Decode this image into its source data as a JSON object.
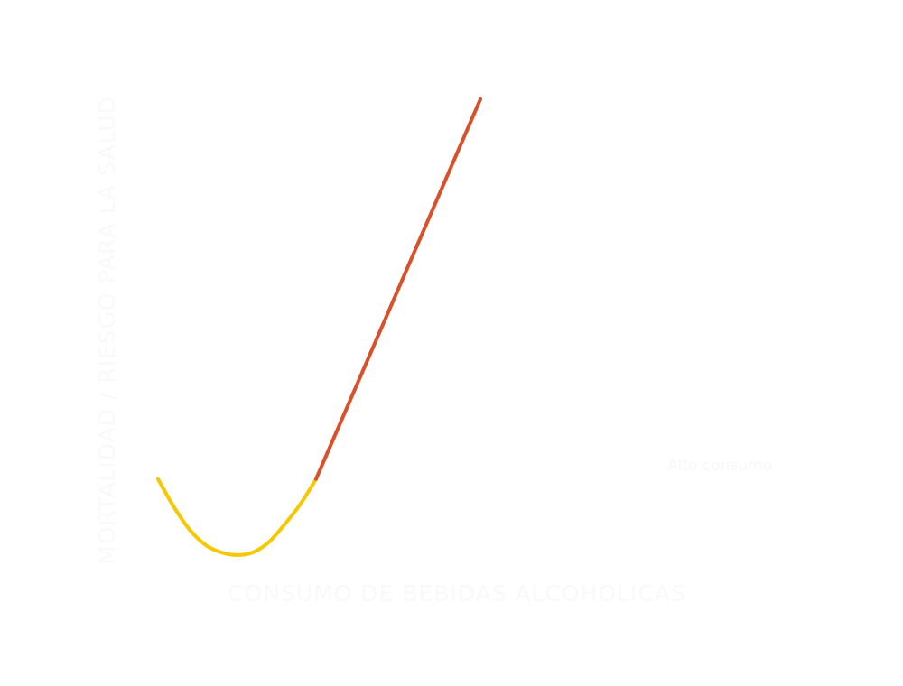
{
  "chart_data": {
    "type": "line",
    "title": "",
    "xlabel": "CONSUMO DE BEBIDAS ALCOHÓLICAS",
    "ylabel": "MORTALIDAD / RIESGO PARA LA SALUD",
    "annotation": "Alto consumo",
    "grid": false,
    "legend": "none",
    "xlim": [
      0,
      10
    ],
    "ylim": [
      0,
      10
    ],
    "series": [
      {
        "name": "",
        "color": "#f5c800",
        "x": [
          0,
          0.5,
          1.0,
          1.5,
          2.0,
          2.5,
          3.0,
          3.5,
          4.0,
          4.5,
          5.0
        ],
        "y": [
          3.0,
          2.45,
          2.0,
          1.7,
          1.55,
          1.5,
          1.55,
          1.75,
          2.1,
          2.5,
          3.0
        ]
      },
      {
        "name": "",
        "color": "#d9502a",
        "x": [
          5.0,
          10.2
        ],
        "y": [
          3.0,
          10.5
        ]
      }
    ]
  }
}
